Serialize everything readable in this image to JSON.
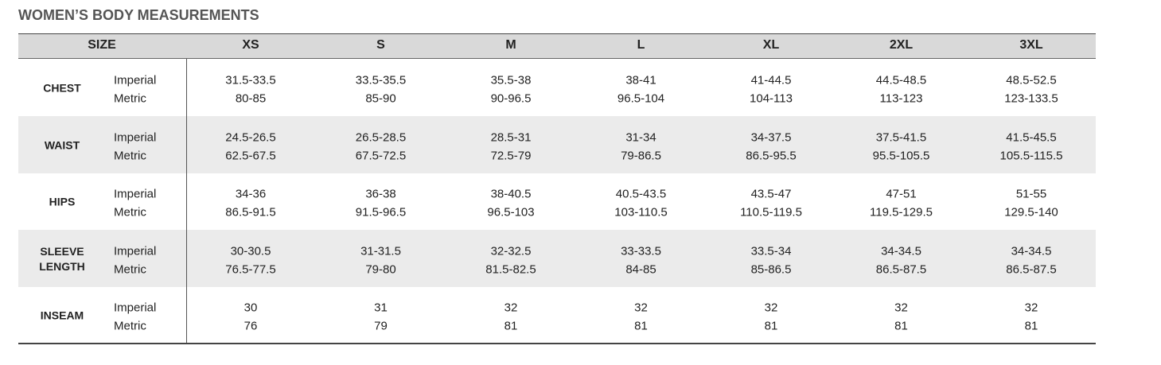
{
  "title": "WOMEN’S BODY MEASUREMENTS",
  "header": {
    "size_label": "SIZE",
    "sizes": [
      "XS",
      "S",
      "M",
      "L",
      "XL",
      "2XL",
      "3XL"
    ]
  },
  "rows": [
    {
      "label": "CHEST",
      "units": [
        "Imperial",
        "Metric"
      ],
      "imperial": [
        "31.5-33.5",
        "33.5-35.5",
        "35.5-38",
        "38-41",
        "41-44.5",
        "44.5-48.5",
        "48.5-52.5"
      ],
      "metric": [
        "80-85",
        "85-90",
        "90-96.5",
        "96.5-104",
        "104-113",
        "113-123",
        "123-133.5"
      ]
    },
    {
      "label": "WAIST",
      "units": [
        "Imperial",
        "Metric"
      ],
      "imperial": [
        "24.5-26.5",
        "26.5-28.5",
        "28.5-31",
        "31-34",
        "34-37.5",
        "37.5-41.5",
        "41.5-45.5"
      ],
      "metric": [
        "62.5-67.5",
        "67.5-72.5",
        "72.5-79",
        "79-86.5",
        "86.5-95.5",
        "95.5-105.5",
        "105.5-115.5"
      ]
    },
    {
      "label": "HIPS",
      "units": [
        "Imperial",
        "Metric"
      ],
      "imperial": [
        "34-36",
        "36-38",
        "38-40.5",
        "40.5-43.5",
        "43.5-47",
        "47-51",
        "51-55"
      ],
      "metric": [
        "86.5-91.5",
        "91.5-96.5",
        "96.5-103",
        "103-110.5",
        "110.5-119.5",
        "119.5-129.5",
        "129.5-140"
      ]
    },
    {
      "label": "SLEEVE LENGTH",
      "units": [
        "Imperial",
        "Metric"
      ],
      "imperial": [
        "30-30.5",
        "31-31.5",
        "32-32.5",
        "33-33.5",
        "33.5-34",
        "34-34.5",
        "34-34.5"
      ],
      "metric": [
        "76.5-77.5",
        "79-80",
        "81.5-82.5",
        "84-85",
        "85-86.5",
        "86.5-87.5",
        "86.5-87.5"
      ]
    },
    {
      "label": "INSEAM",
      "units": [
        "Imperial",
        "Metric"
      ],
      "imperial": [
        "30",
        "31",
        "32",
        "32",
        "32",
        "32",
        "32"
      ],
      "metric": [
        "76",
        "79",
        "81",
        "81",
        "81",
        "81",
        "81"
      ]
    }
  ]
}
